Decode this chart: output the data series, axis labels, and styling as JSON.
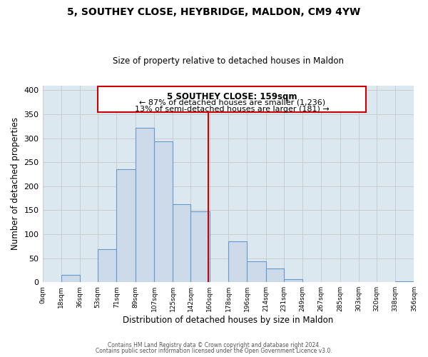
{
  "title": "5, SOUTHEY CLOSE, HEYBRIDGE, MALDON, CM9 4YW",
  "subtitle": "Size of property relative to detached houses in Maldon",
  "xlabel": "Distribution of detached houses by size in Maldon",
  "ylabel": "Number of detached properties",
  "footer_line1": "Contains HM Land Registry data © Crown copyright and database right 2024.",
  "footer_line2": "Contains public sector information licensed under the Open Government Licence v3.0.",
  "annotation_title": "5 SOUTHEY CLOSE: 159sqm",
  "annotation_line2": "← 87% of detached houses are smaller (1,236)",
  "annotation_line3": "13% of semi-detached houses are larger (181) →",
  "property_size_sqm": 159,
  "bar_color": "#ccdaea",
  "bar_edge_color": "#6699cc",
  "ref_line_color": "#cc0000",
  "annotation_box_edge": "#cc0000",
  "annotation_box_face": "#ffffff",
  "grid_color": "#c8c8c8",
  "plot_bg_color": "#dce8f0",
  "background_color": "#ffffff",
  "bins": [
    0,
    18,
    36,
    53,
    71,
    89,
    107,
    125,
    142,
    160,
    178,
    196,
    214,
    231,
    249,
    267,
    285,
    303,
    320,
    338,
    356
  ],
  "counts": [
    0,
    15,
    0,
    68,
    235,
    321,
    293,
    163,
    148,
    0,
    85,
    44,
    28,
    6,
    0,
    0,
    0,
    0,
    0,
    2
  ],
  "ylim": [
    0,
    410
  ],
  "yticks": [
    0,
    50,
    100,
    150,
    200,
    250,
    300,
    350,
    400
  ]
}
